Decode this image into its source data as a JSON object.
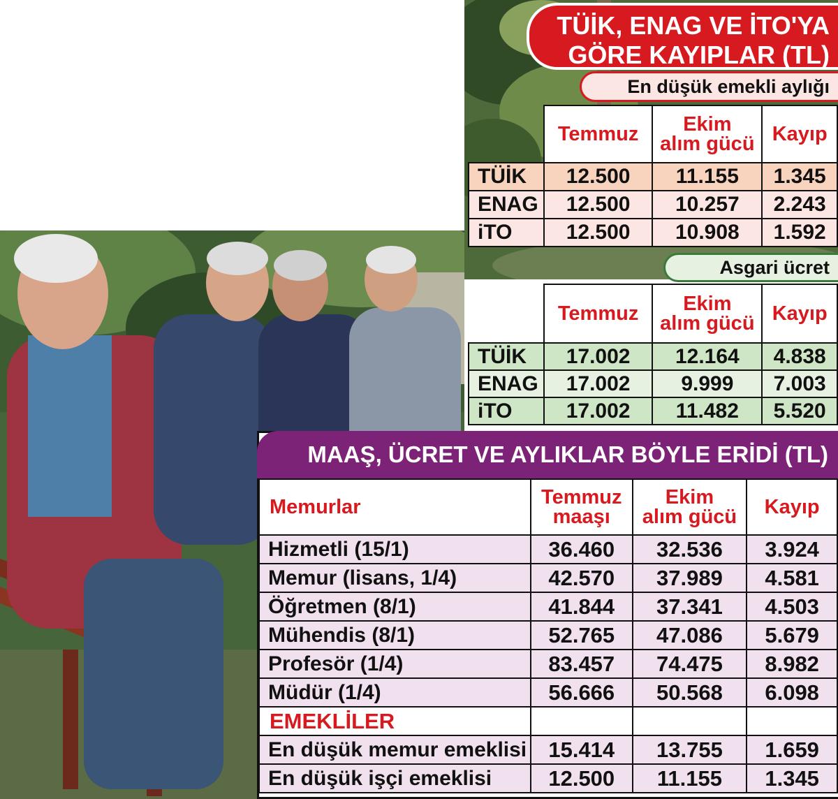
{
  "title_card": {
    "line1": "TÜİK, ENAG VE İTO'YA",
    "line2": "GÖRE KAYIPLAR (TL)"
  },
  "emekli_table": {
    "caption": "En düşük emekli aylığı",
    "headers": {
      "col1": "Temmuz",
      "col2_line1": "Ekim",
      "col2_line2": "alım gücü",
      "col3": "Kayıp"
    },
    "rows": [
      {
        "label": "TÜİK",
        "temmuz": "12.500",
        "ekim": "11.155",
        "kayip": "1.345"
      },
      {
        "label": "ENAG",
        "temmuz": "12.500",
        "ekim": "10.257",
        "kayip": "2.243"
      },
      {
        "label": "iTO",
        "temmuz": "12.500",
        "ekim": "10.908",
        "kayip": "1.592"
      }
    ]
  },
  "asgari_table": {
    "caption": "Asgari ücret",
    "headers": {
      "col1": "Temmuz",
      "col2_line1": "Ekim",
      "col2_line2": "alım gücü",
      "col3": "Kayıp"
    },
    "rows": [
      {
        "label": "TÜİK",
        "temmuz": "17.002",
        "ekim": "12.164",
        "kayip": "4.838"
      },
      {
        "label": "ENAG",
        "temmuz": "17.002",
        "ekim": "9.999",
        "kayip": "7.003"
      },
      {
        "label": "iTO",
        "temmuz": "17.002",
        "ekim": "11.482",
        "kayip": "5.520"
      }
    ]
  },
  "memur_table": {
    "title": "MAAŞ, ÜCRET VE AYLIKLAR BÖYLE ERİDİ (TL)",
    "headers": {
      "col0": "Memurlar",
      "col1_line1": "Temmuz",
      "col1_line2": "maaşı",
      "col2_line1": "Ekim",
      "col2_line2": "alım gücü",
      "col3": "Kayıp"
    },
    "rows": [
      {
        "label": "Hizmetli (15/1)",
        "temmuz": "36.460",
        "ekim": "32.536",
        "kayip": "3.924"
      },
      {
        "label": "Memur (lisans, 1/4)",
        "temmuz": "42.570",
        "ekim": "37.989",
        "kayip": "4.581"
      },
      {
        "label": "Öğretmen (8/1)",
        "temmuz": "41.844",
        "ekim": "37.341",
        "kayip": "4.503"
      },
      {
        "label": "Mühendis (8/1)",
        "temmuz": "52.765",
        "ekim": "47.086",
        "kayip": "5.679"
      },
      {
        "label": "Profesör (1/4)",
        "temmuz": "83.457",
        "ekim": "74.475",
        "kayip": "8.982"
      },
      {
        "label": "Müdür (1/4)",
        "temmuz": "56.666",
        "ekim": "50.568",
        "kayip": "6.098"
      }
    ],
    "section_label": "EMEKLİLER",
    "emekli_rows": [
      {
        "label": "En düşük memur emeklisi",
        "temmuz": "15.414",
        "ekim": "13.755",
        "kayip": "1.659"
      },
      {
        "label": "En düşük işçi emeklisi",
        "temmuz": "12.500",
        "ekim": "11.155",
        "kayip": "1.345"
      }
    ]
  },
  "colors": {
    "red": "#d71920",
    "purple": "#7d2377",
    "pink_row": "#fbe6e3",
    "green_row": "#e6f1e1",
    "lilac_row": "#f1e1ee"
  }
}
